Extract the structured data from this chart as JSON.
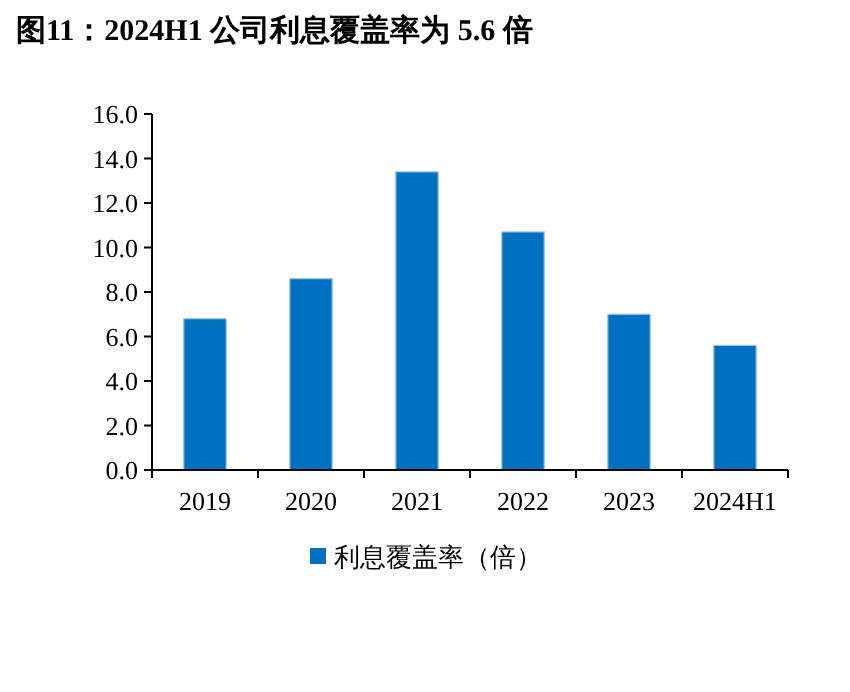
{
  "chart_data": {
    "type": "bar",
    "title": "图11：2024H1 公司利息覆盖率为 5.6 倍",
    "categories": [
      "2019",
      "2020",
      "2021",
      "2022",
      "2023",
      "2024H1"
    ],
    "series": [
      {
        "name": "利息覆盖率（倍）",
        "color": "#0070c0",
        "values": [
          6.8,
          8.6,
          13.4,
          10.7,
          7.0,
          5.6
        ]
      }
    ],
    "ylim": [
      0,
      16
    ],
    "yticks": [
      {
        "value": 0,
        "label": "0.0"
      },
      {
        "value": 2,
        "label": "2.0"
      },
      {
        "value": 4,
        "label": "4.0"
      },
      {
        "value": 6,
        "label": "6.0"
      },
      {
        "value": 8,
        "label": "8.0"
      },
      {
        "value": 10,
        "label": "10.0"
      },
      {
        "value": 12,
        "label": "12.0"
      },
      {
        "value": 14,
        "label": "14.0"
      },
      {
        "value": 16,
        "label": "16.0"
      }
    ],
    "grid": false,
    "legend": "bottom"
  }
}
